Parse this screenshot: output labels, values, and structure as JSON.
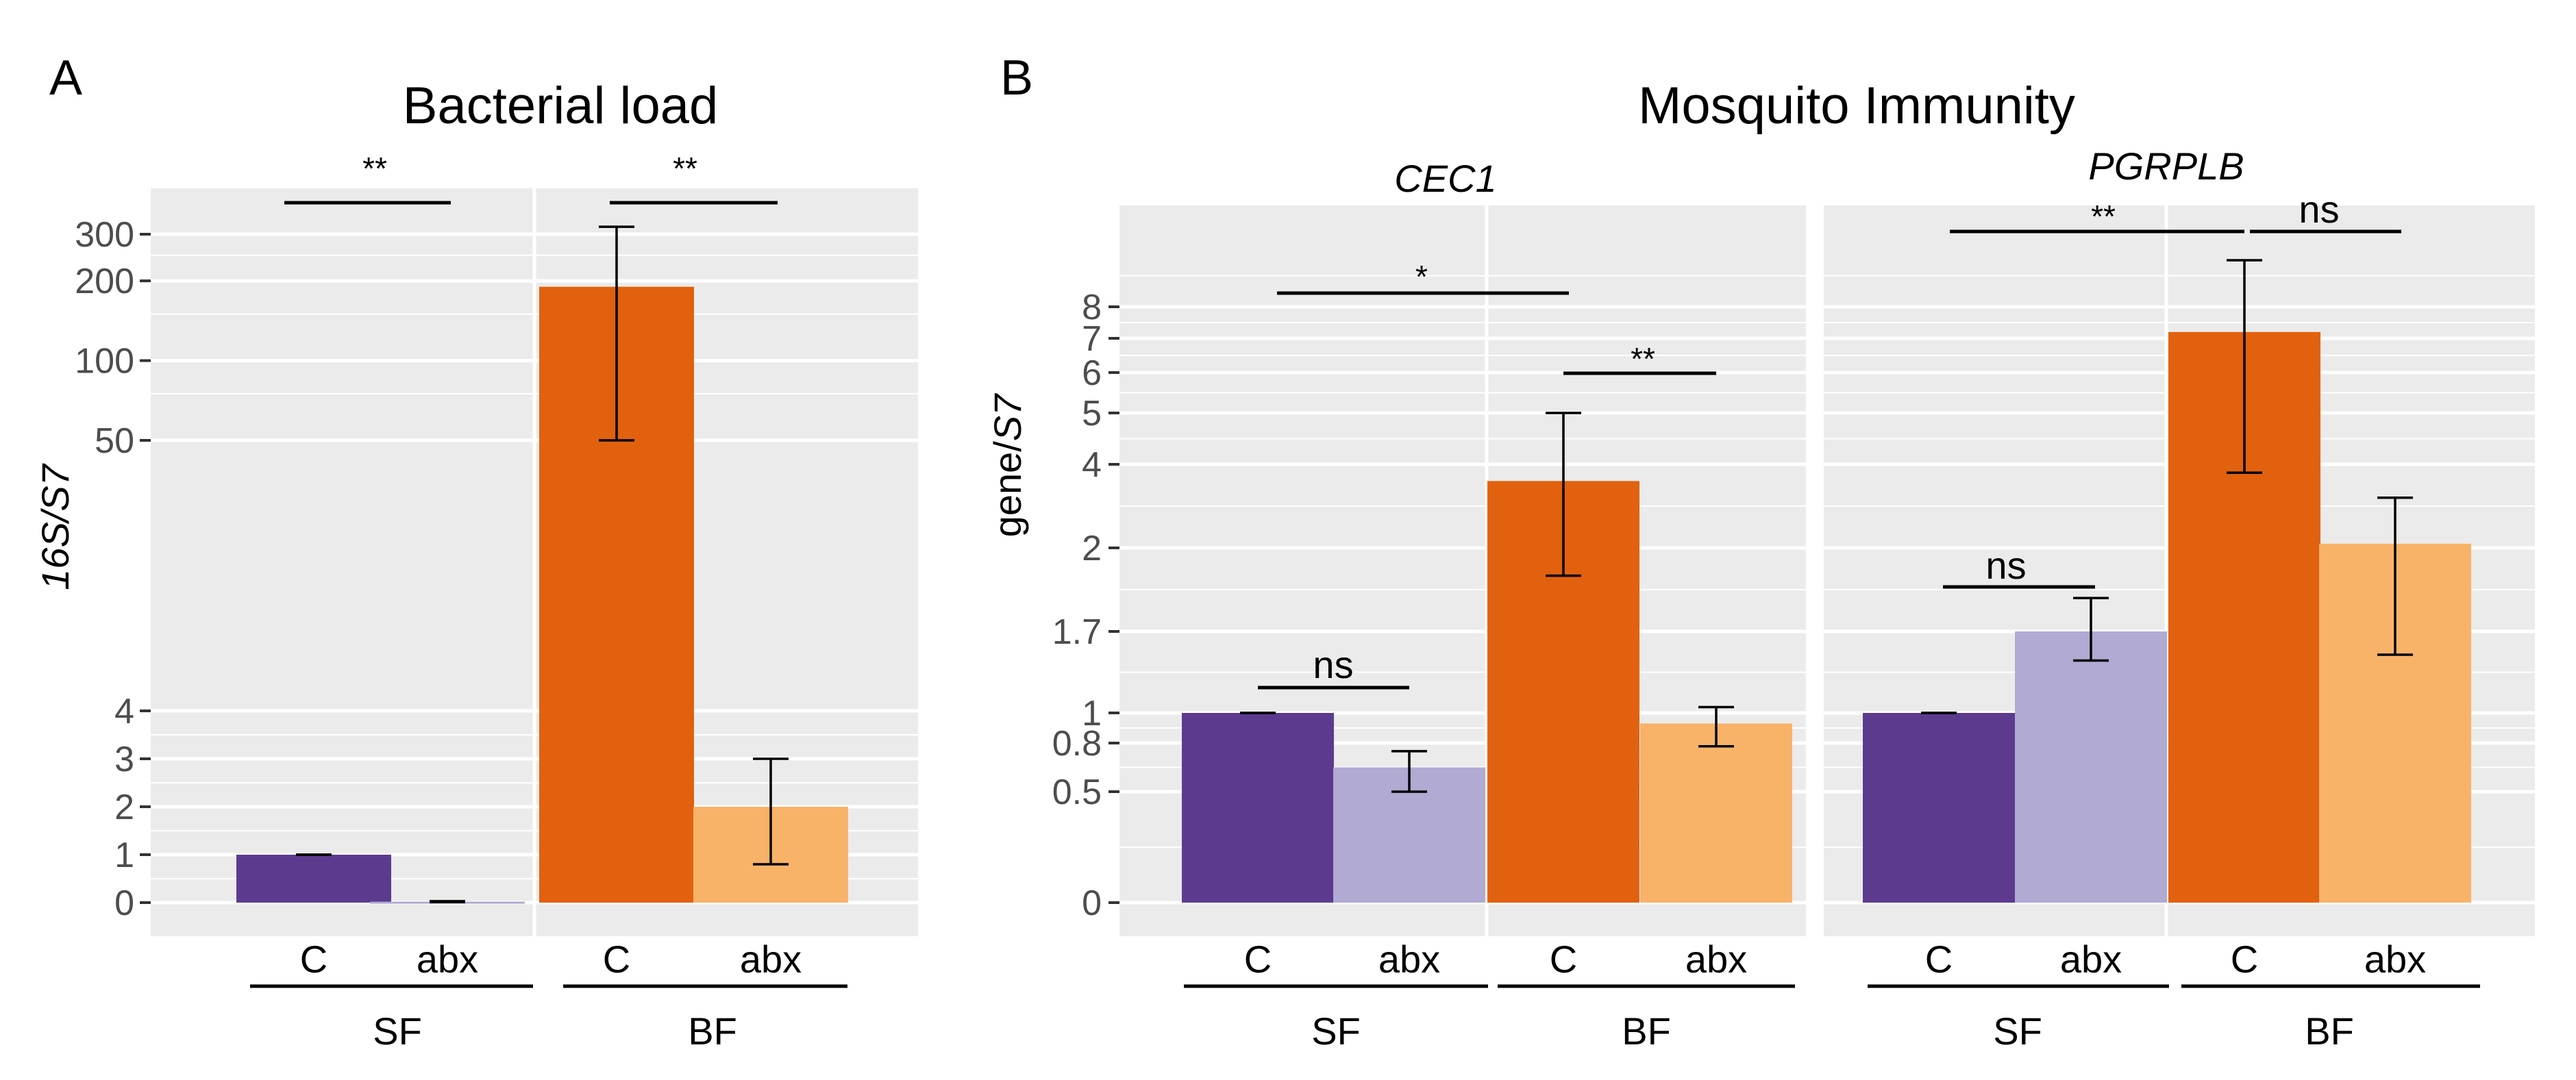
{
  "colors": {
    "panel_bg": "#ebebeb",
    "grid": "#ffffff",
    "SF_C": "#5c3b8f",
    "SF_abx": "#b1aad3",
    "BF_C": "#e2610e",
    "BF_abx": "#f8b369",
    "tick": "#4d4d4d"
  },
  "chart_data": [
    {
      "type": "bar",
      "panel": "A",
      "title": "Bacterial load",
      "ylabel_italic": "16S/S7",
      "scale": "broken (0-4 linear, 50-300 log)",
      "categories": [
        "C",
        "abx",
        "C",
        "abx"
      ],
      "groups": [
        "SF",
        "BF"
      ],
      "yticks": [
        "0",
        "1",
        "2",
        "3",
        "4",
        "50",
        "100",
        "200",
        "300"
      ],
      "bars": [
        {
          "group": "SF",
          "treatment": "C",
          "value": 1.0,
          "err_low": 1.0,
          "err_high": 1.0
        },
        {
          "group": "SF",
          "treatment": "abx",
          "value": 0.02,
          "err_low": 0.01,
          "err_high": 0.03
        },
        {
          "group": "BF",
          "treatment": "C",
          "value": 190,
          "err_low": 50,
          "err_high": 320
        },
        {
          "group": "BF",
          "treatment": "abx",
          "value": 2.0,
          "err_low": 0.8,
          "err_high": 3.0
        }
      ],
      "significance": [
        {
          "label": "**",
          "between": "SF C vs SF abx"
        },
        {
          "label": "**",
          "between": "BF C vs BF abx"
        }
      ]
    },
    {
      "type": "bar",
      "panel": "B",
      "title": "Mosquito Immunity",
      "ylabel_prefix": "gene/",
      "ylabel_italic": "S7",
      "yticks": [
        "0",
        "0.5",
        "0.8",
        "1",
        "1.7",
        "2",
        "4",
        "5",
        "6",
        "7",
        "8"
      ],
      "groups": [
        "SF",
        "BF",
        "SF",
        "BF"
      ],
      "categories": [
        "C",
        "abx",
        "C",
        "abx",
        "C",
        "abx",
        "C",
        "abx"
      ],
      "facets": [
        {
          "gene": "CEC1",
          "bars": [
            {
              "group": "SF",
              "treatment": "C",
              "value": 1.0,
              "err_low": 1.0,
              "err_high": 1.0
            },
            {
              "group": "SF",
              "treatment": "abx",
              "value": 0.65,
              "err_low": 0.5,
              "err_high": 0.75
            },
            {
              "group": "BF",
              "treatment": "C",
              "value": 3.6,
              "err_low": 1.9,
              "err_high": 5.0
            },
            {
              "group": "BF",
              "treatment": "abx",
              "value": 0.93,
              "err_low": 0.78,
              "err_high": 1.05
            }
          ],
          "significance": [
            {
              "label": "ns",
              "between": "SF C vs SF abx"
            },
            {
              "label": "*",
              "between": "SF C vs BF C"
            },
            {
              "label": "**",
              "between": "BF C vs BF abx"
            }
          ]
        },
        {
          "gene": "PGRPLB",
          "bars": [
            {
              "group": "SF",
              "treatment": "C",
              "value": 1.0,
              "err_low": 1.0,
              "err_high": 1.0
            },
            {
              "group": "SF",
              "treatment": "abx",
              "value": 1.7,
              "err_low": 1.45,
              "err_high": 1.82
            },
            {
              "group": "BF",
              "treatment": "C",
              "value": 7.2,
              "err_low": 3.8,
              "err_high": 9.5
            },
            {
              "group": "BF",
              "treatment": "abx",
              "value": 2.1,
              "err_low": 1.5,
              "err_high": 3.2
            }
          ],
          "significance": [
            {
              "label": "ns",
              "between": "SF C vs SF abx"
            },
            {
              "label": "**",
              "between": "SF C vs BF C"
            },
            {
              "label": "ns",
              "between": "BF C vs BF abx"
            }
          ]
        }
      ]
    }
  ]
}
